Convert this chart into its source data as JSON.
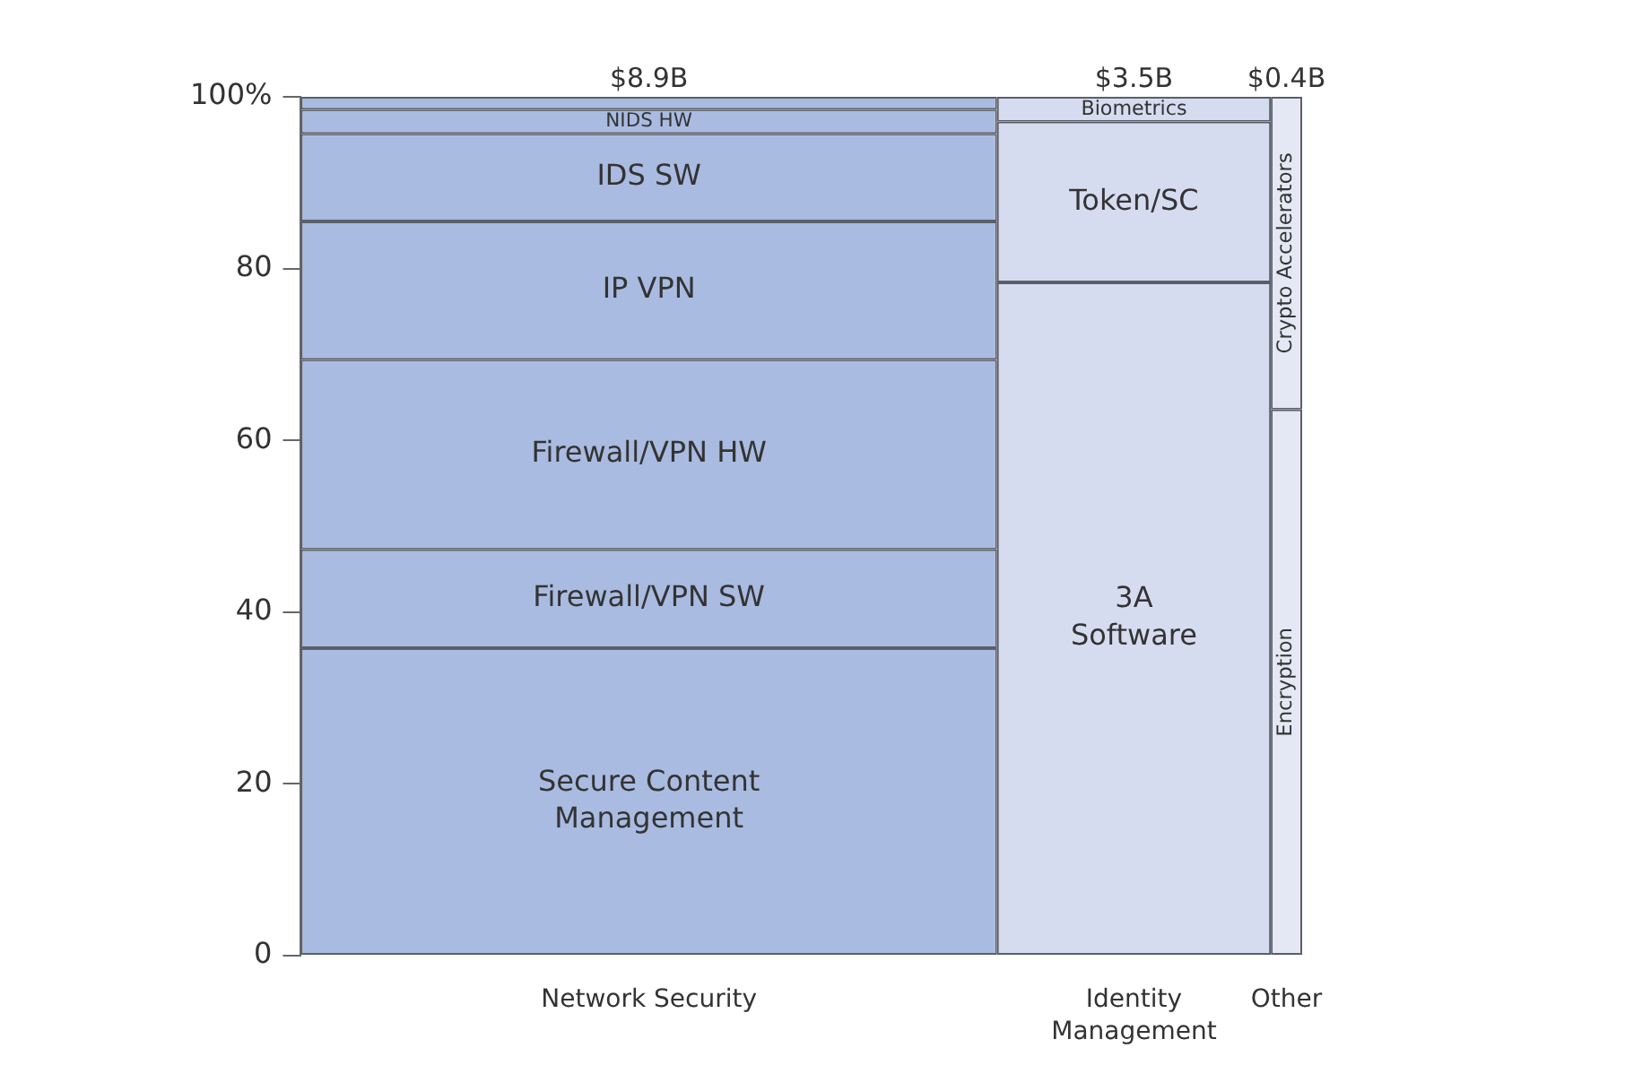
{
  "chart_data": {
    "type": "bar",
    "stacked": true,
    "categories": [
      "Network Security",
      "Identity Management",
      "Other"
    ],
    "ylim": [
      0,
      100
    ],
    "yticks": [
      0,
      20,
      40,
      60,
      80,
      {
        "value": 100,
        "label": "100%"
      }
    ],
    "grid": false,
    "legend": false,
    "annotations": [
      {
        "text": "$8.9B",
        "x": "Network Security",
        "y": 100
      },
      {
        "text": "$3.5B",
        "x": "Identity Management",
        "y": 100
      },
      {
        "text": "$0.4B",
        "x": "Other",
        "y": 100
      }
    ],
    "series": [
      {
        "name": "Secure Content Management",
        "color": "#a9bbe0",
        "values": [
          35.8,
          null,
          null
        ]
      },
      {
        "name": "Firewall/VPN SW",
        "color": "#a9bbe0",
        "values": [
          11.5,
          null,
          null
        ]
      },
      {
        "name": "Firewall/VPN HW",
        "color": "#a9bbe0",
        "values": [
          22.1,
          null,
          null
        ]
      },
      {
        "name": "IP VPN",
        "color": "#a9bbe0",
        "values": [
          16.1,
          null,
          null
        ]
      },
      {
        "name": "IDS SW",
        "color": "#a9bbe0",
        "values": [
          10.2,
          null,
          null
        ]
      },
      {
        "name": "NIDS HW",
        "color": "#a9bbe0",
        "values": [
          2.8,
          null,
          null
        ]
      },
      {
        "color": "#a9bbe0",
        "values": [
          1.5,
          null,
          null
        ]
      },
      {
        "name": "3A Software",
        "color": "#d6dcf0",
        "values": [
          null,
          78.4,
          null
        ]
      },
      {
        "name": "Token/SC",
        "color": "#d6dcf0",
        "values": [
          null,
          18.7,
          null
        ]
      },
      {
        "name": "Biometrics",
        "color": "#d6dcf0",
        "values": [
          null,
          2.9,
          null
        ]
      },
      {
        "name": "Encryption",
        "color": "#e4e8f5",
        "values": [
          null,
          null,
          63.6
        ]
      },
      {
        "name": "Crypto Accelerators",
        "color": "#e4e8f5",
        "values": [
          null,
          null,
          36.4
        ]
      }
    ]
  }
}
